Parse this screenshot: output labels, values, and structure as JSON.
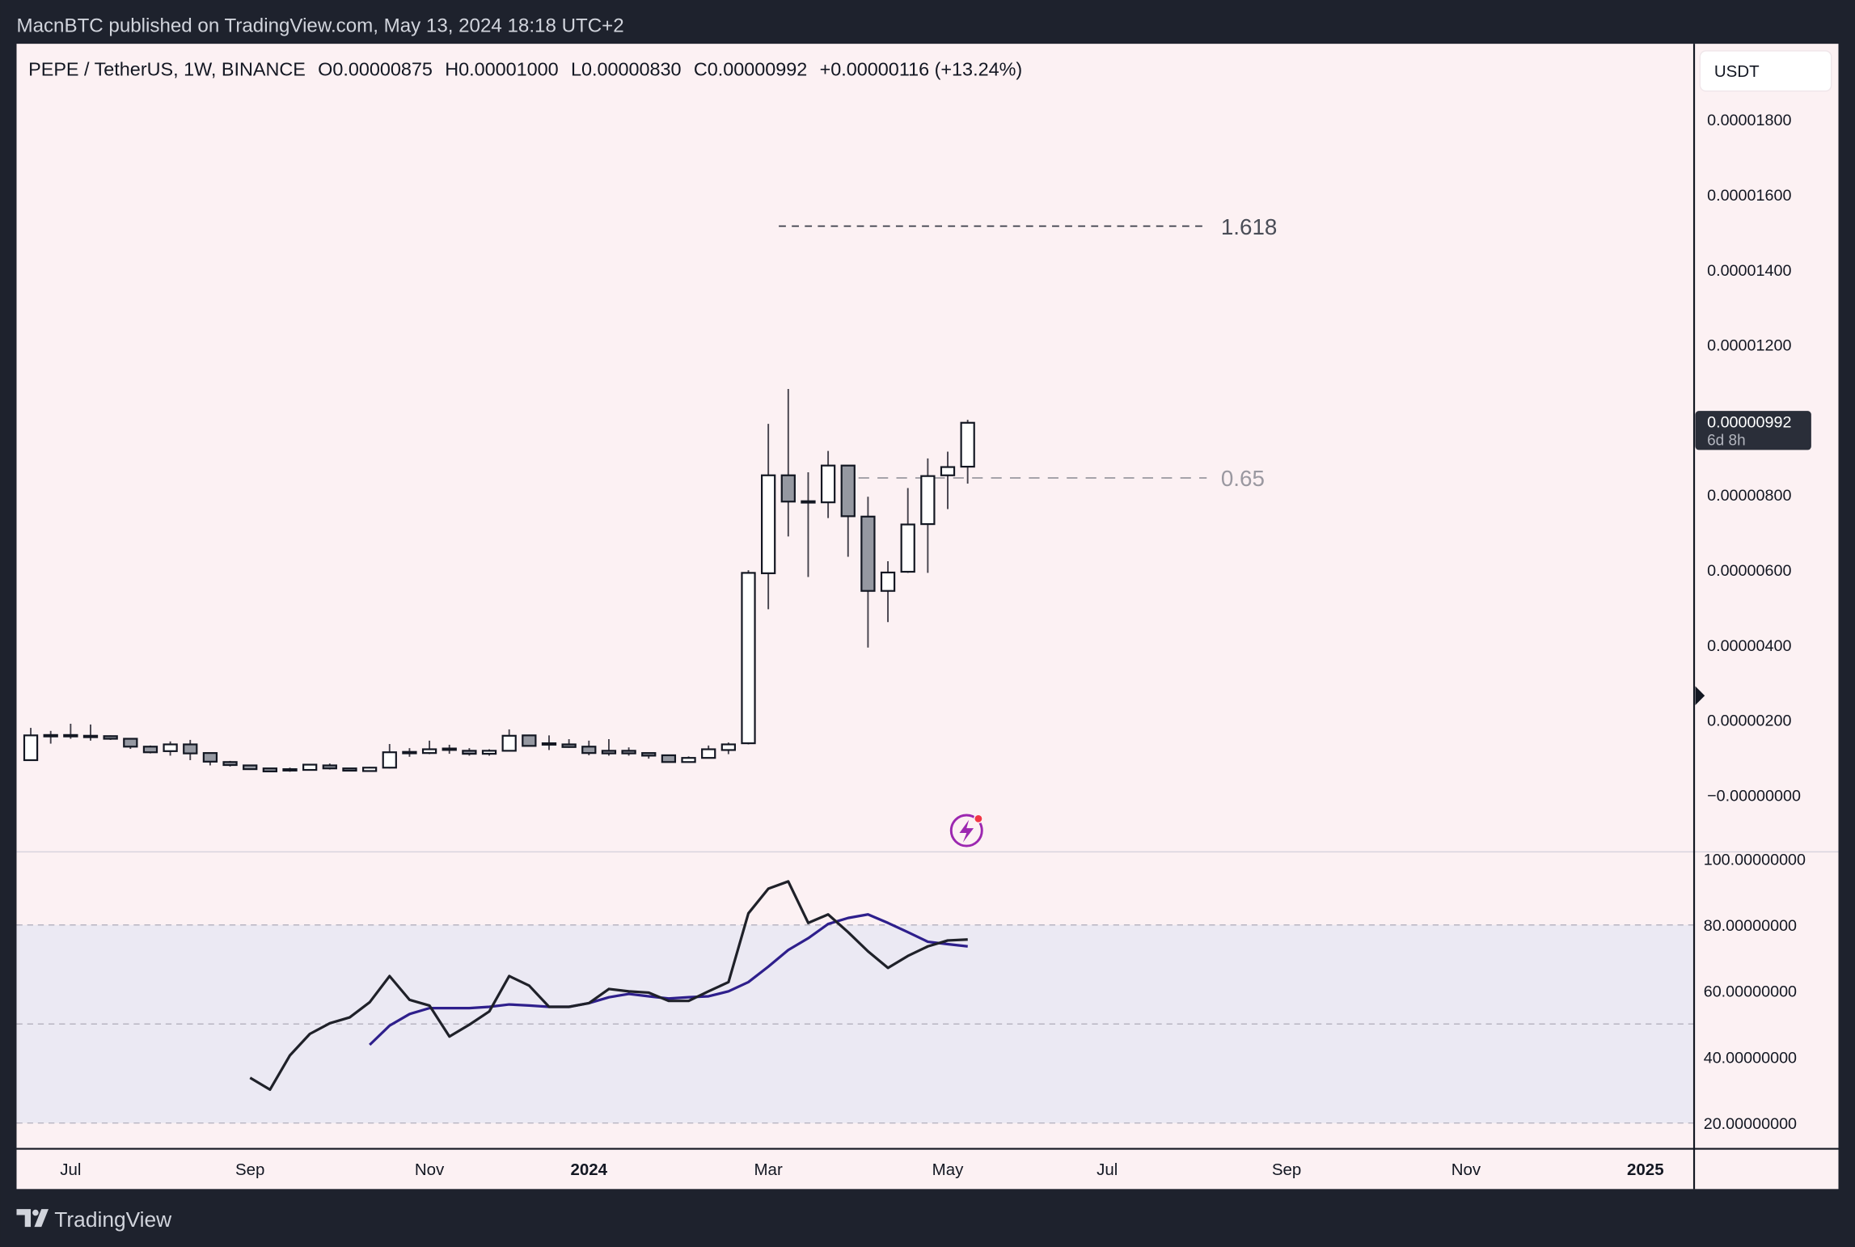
{
  "header": {
    "published_text": "MacnBTC published on TradingView.com, May 13, 2024 18:18 UTC+2"
  },
  "legend": {
    "symbol": "PEPE / TetherUS, 1W, BINANCE",
    "open": "O0.00000875",
    "high": "H0.00001000",
    "low": "L0.00000830",
    "close": "C0.00000992",
    "change": "+0.00000116 (+13.24%)"
  },
  "currency_button": "USDT",
  "price_axis": {
    "ticks": [
      {
        "label": "0.00001800",
        "value": 18
      },
      {
        "label": "0.00001600",
        "value": 16
      },
      {
        "label": "0.00001400",
        "value": 14
      },
      {
        "label": "0.00001200",
        "value": 12
      },
      {
        "label": "0.00000800",
        "value": 8
      },
      {
        "label": "0.00000600",
        "value": 6
      },
      {
        "label": "0.00000400",
        "value": 4
      },
      {
        "label": "0.00000200",
        "value": 2
      },
      {
        "label": "−0.00000000",
        "value": 0
      }
    ],
    "last_price": {
      "label": "0.00000992",
      "countdown": "6d 8h",
      "value": 9.92
    }
  },
  "fib_levels": [
    {
      "label": "1.618",
      "value": 15.16,
      "from_week": 38
    },
    {
      "label": "0.65",
      "value": 8.45,
      "from_week": 42
    }
  ],
  "rsi_axis": {
    "ticks": [
      {
        "label": "100.00000000",
        "value": 100
      },
      {
        "label": "80.00000000",
        "value": 80
      },
      {
        "label": "60.00000000",
        "value": 60
      },
      {
        "label": "40.00000000",
        "value": 40
      },
      {
        "label": "20.00000000",
        "value": 20
      }
    ],
    "bands": [
      80,
      50,
      20
    ]
  },
  "time_axis": [
    {
      "label": "Jul",
      "week": 2,
      "bold": false
    },
    {
      "label": "Sep",
      "week": 11,
      "bold": false
    },
    {
      "label": "Nov",
      "week": 20,
      "bold": false
    },
    {
      "label": "2024",
      "week": 28,
      "bold": true
    },
    {
      "label": "Mar",
      "week": 37,
      "bold": false
    },
    {
      "label": "May",
      "week": 46,
      "bold": false
    },
    {
      "label": "Jul",
      "week": 54,
      "bold": false
    },
    {
      "label": "Sep",
      "week": 63,
      "bold": false
    },
    {
      "label": "Nov",
      "week": 72,
      "bold": false
    },
    {
      "label": "2025",
      "week": 81,
      "bold": true
    }
  ],
  "footer": {
    "brand": "TradingView"
  },
  "colors": {
    "background": "#fcf1f3",
    "frame": "#1e222d",
    "up": "#ffffff",
    "down": "#9598a1",
    "rsi": "#1f2129",
    "rsi_ma": "#2e1f8c",
    "band_fill": "#ebe9f3",
    "alert": "#9c27b0"
  },
  "chart_data": {
    "type": "candlestick",
    "title": "PEPE / TetherUS, 1W, BINANCE",
    "price_unit": "millionths of USDT (value x 1e-6)",
    "ylim": [
      -1.5,
      19
    ],
    "candles_ohlc": [
      [
        0.93,
        1.79,
        0.92,
        1.59
      ],
      [
        1.59,
        1.71,
        1.37,
        1.6
      ],
      [
        1.6,
        1.9,
        1.5,
        1.58
      ],
      [
        1.58,
        1.88,
        1.45,
        1.58
      ],
      [
        1.57,
        1.59,
        1.47,
        1.5
      ],
      [
        1.5,
        1.5,
        1.23,
        1.29
      ],
      [
        1.29,
        1.32,
        1.11,
        1.14
      ],
      [
        1.17,
        1.43,
        1.05,
        1.35
      ],
      [
        1.35,
        1.47,
        0.93,
        1.11
      ],
      [
        1.12,
        1.12,
        0.79,
        0.89
      ],
      [
        0.88,
        0.91,
        0.76,
        0.8
      ],
      [
        0.79,
        0.81,
        0.67,
        0.69
      ],
      [
        0.71,
        0.71,
        0.62,
        0.63
      ],
      [
        0.69,
        0.73,
        0.62,
        0.68
      ],
      [
        0.67,
        0.82,
        0.66,
        0.81
      ],
      [
        0.79,
        0.84,
        0.68,
        0.71
      ],
      [
        0.71,
        0.72,
        0.64,
        0.65
      ],
      [
        0.64,
        0.75,
        0.62,
        0.73
      ],
      [
        0.73,
        1.36,
        0.71,
        1.14
      ],
      [
        1.14,
        1.25,
        1.02,
        1.15
      ],
      [
        1.12,
        1.45,
        1.09,
        1.22
      ],
      [
        1.22,
        1.34,
        1.1,
        1.24
      ],
      [
        1.18,
        1.25,
        1.05,
        1.1
      ],
      [
        1.1,
        1.22,
        1.05,
        1.18
      ],
      [
        1.18,
        1.75,
        1.18,
        1.58
      ],
      [
        1.59,
        1.61,
        1.3,
        1.31
      ],
      [
        1.37,
        1.59,
        1.2,
        1.38
      ],
      [
        1.35,
        1.49,
        1.26,
        1.28
      ],
      [
        1.29,
        1.45,
        1.06,
        1.12
      ],
      [
        1.18,
        1.49,
        1.05,
        1.11
      ],
      [
        1.18,
        1.27,
        1.05,
        1.11
      ],
      [
        1.12,
        1.12,
        0.97,
        1.05
      ],
      [
        1.06,
        1.06,
        0.88,
        0.88
      ],
      [
        0.88,
        1.03,
        0.88,
        0.99
      ],
      [
        0.99,
        1.32,
        0.99,
        1.22
      ],
      [
        1.2,
        1.4,
        1.09,
        1.35
      ],
      [
        1.38,
        5.99,
        1.35,
        5.92
      ],
      [
        5.91,
        9.89,
        4.95,
        8.52
      ],
      [
        8.52,
        10.82,
        6.89,
        7.82
      ],
      [
        7.82,
        8.6,
        5.81,
        7.83
      ],
      [
        7.8,
        9.17,
        7.38,
        8.78
      ],
      [
        8.78,
        8.78,
        6.35,
        7.43
      ],
      [
        7.42,
        7.95,
        3.93,
        5.44
      ],
      [
        5.44,
        6.23,
        4.61,
        5.93
      ],
      [
        5.95,
        8.18,
        5.92,
        7.21
      ],
      [
        7.22,
        8.97,
        5.92,
        8.5
      ],
      [
        8.52,
        9.15,
        7.62,
        8.74
      ],
      [
        8.75,
        10.0,
        8.3,
        9.92
      ]
    ],
    "rsi": {
      "start_week": 11,
      "ylim": [
        10,
        100
      ],
      "values": [
        33.7,
        30.1,
        40.5,
        47.0,
        50.2,
        52.0,
        56.6,
        64.5,
        57.3,
        55.6,
        46.2,
        49.8,
        53.8,
        64.5,
        61.6,
        55.2,
        55.2,
        56.3,
        60.6,
        59.9,
        59.5,
        57.0,
        57.0,
        59.9,
        62.7,
        83.5,
        91.0,
        93.2,
        80.6,
        83.2,
        77.8,
        72.0,
        67.0,
        70.6,
        73.5,
        75.3,
        75.6
      ]
    },
    "rsi_ma": {
      "start_week": 17,
      "values": [
        43.7,
        49.5,
        53.0,
        54.8,
        54.8,
        54.8,
        55.2,
        55.9,
        55.6,
        55.2,
        55.2,
        56.3,
        58.1,
        59.1,
        58.4,
        57.7,
        58.1,
        58.4,
        59.9,
        62.7,
        67.4,
        72.4,
        76.0,
        80.3,
        82.1,
        83.2,
        80.6,
        77.8,
        74.9,
        74.2,
        73.5
      ]
    }
  }
}
